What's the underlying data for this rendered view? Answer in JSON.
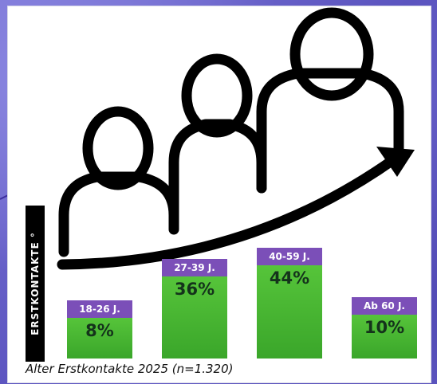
{
  "caption": "Alter Erstkontakte 2025 (n=1.320)",
  "side_label": "ERSTKONTAKTE °",
  "colors": {
    "category_band": "#7b4fb8",
    "bar_fill": "#4cb832",
    "value_text": "#14331b",
    "icon_stroke": "#000000",
    "background": "#6b63c9"
  },
  "chart_data": {
    "type": "bar",
    "categories": [
      "18-26 J.",
      "27-39 J.",
      "40-59 J.",
      "Ab 60 J."
    ],
    "values": [
      8,
      36,
      44,
      10
    ],
    "value_labels": [
      "8%",
      "36%",
      "44%",
      "10%"
    ],
    "title": "",
    "xlabel": "",
    "ylabel": "ERSTKONTAKTE °",
    "unit": "%",
    "grid": false,
    "legend": "none",
    "decoration": [
      "people-icon",
      "rising-arrow-icon"
    ]
  }
}
